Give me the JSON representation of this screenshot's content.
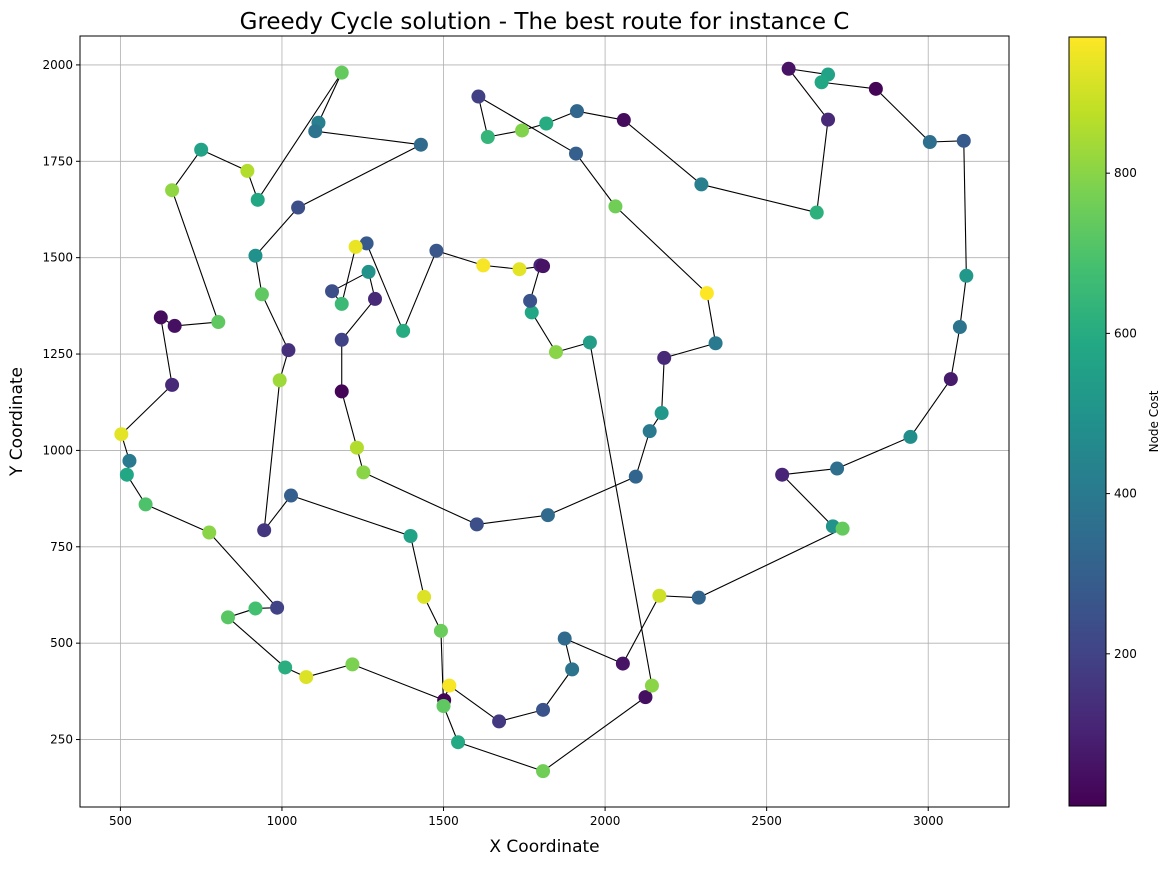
{
  "chart_data": {
    "type": "scatter",
    "title": "Greedy Cycle solution - The best route for instance C",
    "xlabel": "X Coordinate",
    "ylabel": "Y Coordinate",
    "colorbar_label": "Node Cost",
    "xlim": [
      375,
      3250
    ],
    "ylim": [
      75,
      2075
    ],
    "x_ticks": [
      500,
      1000,
      1500,
      2000,
      2500,
      3000
    ],
    "y_ticks": [
      250,
      500,
      750,
      1000,
      1250,
      1500,
      1750,
      2000
    ],
    "colorbar_range": [
      10,
      970
    ],
    "colorbar_ticks": [
      200,
      400,
      600,
      800
    ],
    "colormap": "viridis",
    "grid": true,
    "legend": "none",
    "route_color": "#000000",
    "route": [
      [
        2568,
        1990,
        60
      ],
      [
        2690,
        1975,
        560
      ],
      [
        2670,
        1955,
        580
      ],
      [
        2838,
        1938,
        20
      ],
      [
        3005,
        1800,
        360
      ],
      [
        3110,
        1803,
        280
      ],
      [
        3118,
        1453,
        520
      ],
      [
        3098,
        1320,
        380
      ],
      [
        3070,
        1185,
        80
      ],
      [
        2945,
        1035,
        480
      ],
      [
        2718,
        953,
        360
      ],
      [
        2548,
        937,
        110
      ],
      [
        2705,
        803,
        500
      ],
      [
        2735,
        797,
        740
      ],
      [
        2290,
        618,
        320
      ],
      [
        2168,
        623,
        900
      ],
      [
        2055,
        447,
        60
      ],
      [
        1875,
        512,
        340
      ],
      [
        1898,
        432,
        380
      ],
      [
        1808,
        327,
        260
      ],
      [
        1672,
        297,
        170
      ],
      [
        1518,
        390,
        960
      ],
      [
        1502,
        352,
        20
      ],
      [
        1218,
        445,
        780
      ],
      [
        1075,
        412,
        920
      ],
      [
        1010,
        437,
        610
      ],
      [
        833,
        567,
        720
      ],
      [
        918,
        590,
        680
      ],
      [
        985,
        592,
        200
      ],
      [
        775,
        787,
        800
      ],
      [
        578,
        860,
        700
      ],
      [
        520,
        937,
        580
      ],
      [
        528,
        973,
        400
      ],
      [
        503,
        1042,
        930
      ],
      [
        660,
        1170,
        120
      ],
      [
        625,
        1345,
        40
      ],
      [
        668,
        1323,
        50
      ],
      [
        803,
        1333,
        730
      ],
      [
        660,
        1675,
        810
      ],
      [
        750,
        1780,
        560
      ],
      [
        893,
        1725,
        860
      ],
      [
        925,
        1650,
        580
      ],
      [
        1185,
        1980,
        740
      ],
      [
        1113,
        1850,
        420
      ],
      [
        1103,
        1828,
        380
      ],
      [
        1430,
        1793,
        340
      ],
      [
        1050,
        1630,
        240
      ],
      [
        918,
        1505,
        490
      ],
      [
        938,
        1405,
        730
      ],
      [
        1020,
        1260,
        140
      ],
      [
        993,
        1182,
        830
      ],
      [
        945,
        793,
        160
      ],
      [
        1028,
        883,
        300
      ],
      [
        1398,
        778,
        560
      ],
      [
        1440,
        620,
        920
      ],
      [
        1492,
        532,
        750
      ],
      [
        1500,
        337,
        730
      ],
      [
        1545,
        243,
        590
      ],
      [
        1808,
        168,
        760
      ],
      [
        2125,
        360,
        50
      ],
      [
        2145,
        390,
        800
      ],
      [
        1953,
        1280,
        540
      ],
      [
        1848,
        1255,
        800
      ],
      [
        1773,
        1358,
        580
      ],
      [
        1768,
        1388,
        260
      ],
      [
        1800,
        1480,
        110
      ],
      [
        1808,
        1478,
        60
      ],
      [
        1735,
        1470,
        930
      ],
      [
        1623,
        1480,
        960
      ],
      [
        1478,
        1518,
        270
      ],
      [
        1375,
        1310,
        600
      ],
      [
        1262,
        1537,
        280
      ],
      [
        1228,
        1528,
        940
      ],
      [
        1185,
        1380,
        660
      ],
      [
        1155,
        1413,
        240
      ],
      [
        1268,
        1463,
        500
      ],
      [
        1288,
        1393,
        120
      ],
      [
        1185,
        1287,
        200
      ],
      [
        1185,
        1153,
        20
      ],
      [
        1232,
        1007,
        860
      ],
      [
        1252,
        943,
        800
      ],
      [
        1603,
        808,
        240
      ],
      [
        1823,
        832,
        340
      ],
      [
        2095,
        932,
        320
      ],
      [
        2138,
        1050,
        400
      ],
      [
        2175,
        1097,
        520
      ],
      [
        2183,
        1240,
        120
      ],
      [
        2342,
        1278,
        400
      ],
      [
        2315,
        1408,
        970
      ],
      [
        2032,
        1633,
        760
      ],
      [
        1910,
        1770,
        300
      ],
      [
        1608,
        1918,
        190
      ],
      [
        1637,
        1813,
        640
      ],
      [
        1743,
        1830,
        790
      ],
      [
        1818,
        1848,
        600
      ],
      [
        1913,
        1880,
        330
      ],
      [
        2058,
        1857,
        40
      ],
      [
        2298,
        1690,
        420
      ],
      [
        2655,
        1617,
        620
      ],
      [
        2690,
        1858,
        120
      ]
    ]
  }
}
